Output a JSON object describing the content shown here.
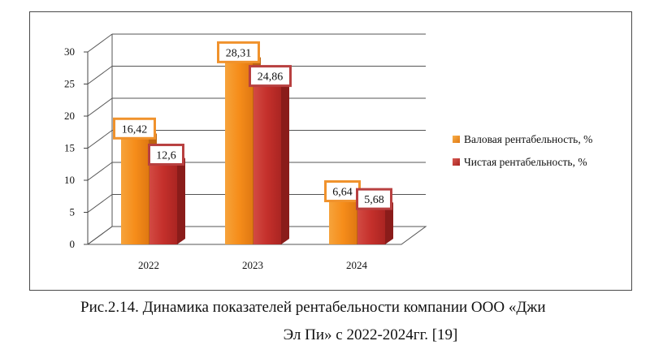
{
  "chart_data": {
    "type": "bar",
    "style": "3d-clustered-column",
    "categories": [
      "2022",
      "2023",
      "2024"
    ],
    "series": [
      {
        "name": "Валовая рентабельность, %",
        "values": [
          16.42,
          28.31,
          6.64
        ],
        "labels": [
          "16,42",
          "28,31",
          "6,64"
        ],
        "color": "#f28c1e",
        "label_border": "#f0922c"
      },
      {
        "name": "Чистая рентабельность, %",
        "values": [
          12.6,
          24.86,
          5.68
        ],
        "labels": [
          "12,6",
          "24,86",
          "5,68"
        ],
        "color": "#c0312c",
        "label_border": "#b84040"
      }
    ],
    "y_ticks": [
      "0",
      "5",
      "10",
      "15",
      "20",
      "25",
      "30"
    ],
    "ylim": [
      0,
      30
    ],
    "grid": true,
    "legend": "right"
  },
  "caption": {
    "line1": "Рис.2.14. Динамика показателей рентабельности компании ООО «Джи",
    "line2": "Эл Пи» с 2022-2024гг. [19]"
  }
}
